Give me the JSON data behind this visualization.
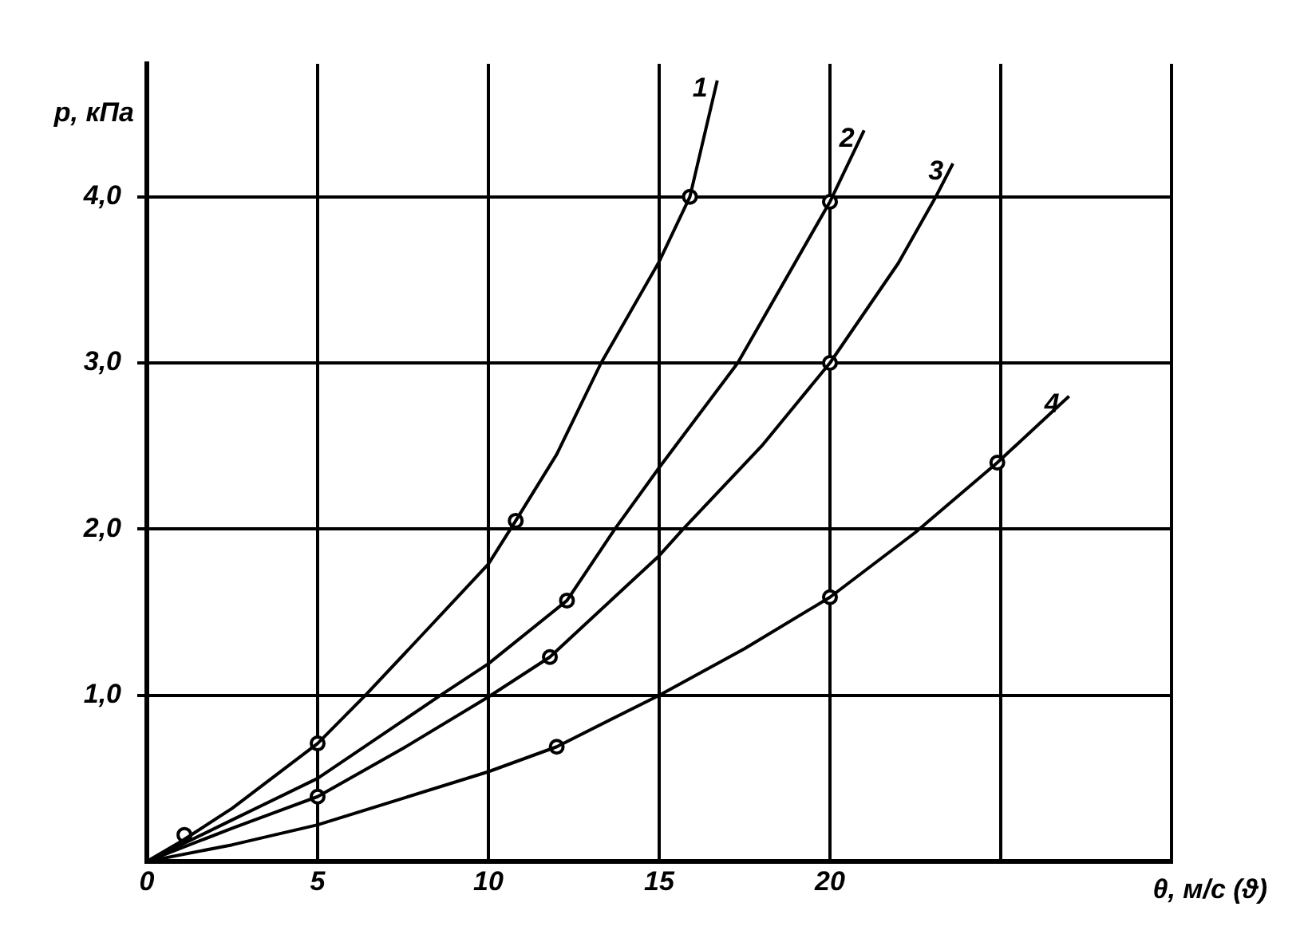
{
  "chart_data": {
    "type": "line",
    "xlabel": "θ, м/с (ϑ)",
    "ylabel": "p, кПа",
    "xlim": [
      0,
      30
    ],
    "ylim": [
      0,
      4.8
    ],
    "xticks": [
      0,
      5,
      10,
      15,
      20,
      {
        "value": 25,
        "label": null
      },
      {
        "value": 30,
        "label": null
      }
    ],
    "yticks": [
      {
        "value": 1,
        "label": "1,0"
      },
      {
        "value": 2,
        "label": "2,0"
      },
      {
        "value": 3,
        "label": "3,0"
      },
      {
        "value": 4,
        "label": "4,0"
      }
    ],
    "grid": true,
    "legend": false,
    "marker": "none",
    "line_style": "solid",
    "series": [
      {
        "name": "1",
        "color": "#000000",
        "x": [
          0,
          1,
          2.5,
          5,
          6.4,
          8,
          10,
          10.8,
          12,
          13.3,
          15,
          15.9,
          16.7
        ],
        "values": [
          0,
          0.12,
          0.32,
          0.71,
          1.0,
          1.35,
          1.79,
          2.05,
          2.45,
          3.0,
          3.61,
          4.0,
          4.7
        ]
      },
      {
        "name": "2",
        "color": "#000000",
        "x": [
          0,
          2.5,
          5,
          8.6,
          10,
          12.3,
          13.7,
          15,
          17.3,
          20,
          21
        ],
        "values": [
          0,
          0.25,
          0.5,
          1.0,
          1.19,
          1.57,
          2.0,
          2.37,
          3.0,
          3.97,
          4.4
        ]
      },
      {
        "name": "3",
        "color": "#000000",
        "x": [
          0,
          2.5,
          5,
          7.5,
          10,
          11.8,
          15,
          15.7,
          18,
          20,
          22,
          23.1,
          23.6
        ],
        "values": [
          0,
          0.2,
          0.39,
          0.68,
          0.99,
          1.23,
          1.84,
          2.0,
          2.5,
          3.0,
          3.6,
          4.0,
          4.2
        ]
      },
      {
        "name": "4",
        "color": "#000000",
        "x": [
          0,
          2.5,
          5,
          7.5,
          10,
          12,
          15,
          17.5,
          20,
          22.5,
          24.9,
          27
        ],
        "values": [
          0,
          0.1,
          0.22,
          0.38,
          0.54,
          0.69,
          1.0,
          1.28,
          1.59,
          1.98,
          2.4,
          2.8
        ]
      },
      {
        "type": "scatter",
        "color": "#000000",
        "marker": "circle",
        "x": [
          1.1,
          5,
          10.8,
          15.9,
          12.3,
          20,
          5,
          11.8,
          20,
          12,
          20,
          24.9
        ],
        "values": [
          0.16,
          0.71,
          2.05,
          4.0,
          1.57,
          3.97,
          0.39,
          1.23,
          3.0,
          0.69,
          1.59,
          2.4
        ]
      }
    ]
  }
}
